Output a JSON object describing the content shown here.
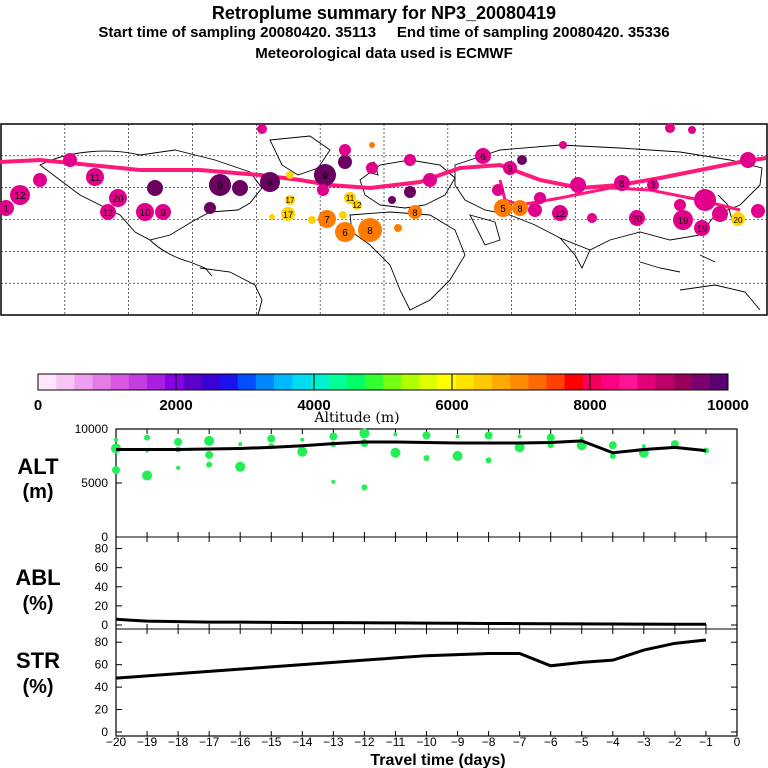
{
  "header": {
    "title": "Retroplume summary for NP3_20080419",
    "subtitle_start_label": "Start time of sampling 20080420. 35113",
    "subtitle_end_label": "End time of sampling 20080420. 35336",
    "subtitle_met": "Meteorological data used is ECMWF"
  },
  "colorbar": {
    "label": "Altitude (m)",
    "tick_labels": [
      "0",
      "2000",
      "4000",
      "6000",
      "8000",
      "10000"
    ],
    "range": [
      0,
      10000
    ],
    "colors": [
      "#ffe6ff",
      "#f7c6f7",
      "#ef9fef",
      "#e57be5",
      "#d957e3",
      "#c43de0",
      "#a81fe0",
      "#8a00e6",
      "#5a00c8",
      "#3c00d8",
      "#1c10f0",
      "#0050ff",
      "#0088ff",
      "#00b8ff",
      "#00dcf0",
      "#00f0d0",
      "#00ff99",
      "#00ff66",
      "#33ff33",
      "#77ff11",
      "#b0ff00",
      "#e0ff00",
      "#ffff00",
      "#ffe400",
      "#ffc800",
      "#ffaa00",
      "#ff8c00",
      "#ff6a00",
      "#ff4000",
      "#ff0000",
      "#f0005a",
      "#ff0080",
      "#ff1493",
      "#e0007a",
      "#c0006a",
      "#9a005a",
      "#7a0070",
      "#5a0070"
    ]
  },
  "map": {
    "name": "world map retroplume clusters",
    "plume_colors": {
      "track": "#ff1a7a",
      "magenta": "#e0008c",
      "purple": "#6a0060",
      "orange": "#ff7a00",
      "yellow": "#ffd200"
    },
    "cluster_labels": [
      "1",
      "3",
      "5",
      "6",
      "7",
      "8",
      "9",
      "10",
      "11",
      "12",
      "13",
      "14",
      "15",
      "16",
      "17",
      "18",
      "19",
      "20"
    ]
  },
  "panels": {
    "alt_label": "ALT",
    "alt_unit": "(m)",
    "abl_label": "ABL",
    "abl_unit": "(%)",
    "str_label": "STR",
    "str_unit": "(%)",
    "xlabel": "Travel time (days)"
  },
  "chart_data": [
    {
      "type": "line",
      "name": "ALT",
      "ylabel": "ALT (m)",
      "ylim": [
        0,
        10000
      ],
      "yticks": [
        0,
        5000,
        10000
      ],
      "xlim": [
        -20,
        0
      ],
      "x": [
        -20,
        -19,
        -18,
        -17,
        -16,
        -15,
        -14,
        -13,
        -12,
        -11,
        -10,
        -9,
        -8,
        -7,
        -6,
        -5,
        -4,
        -3,
        -2,
        -1
      ],
      "values": [
        8100,
        8100,
        8100,
        8150,
        8200,
        8300,
        8450,
        8650,
        8800,
        8800,
        8750,
        8700,
        8700,
        8700,
        8750,
        8900,
        7800,
        8100,
        8300,
        8000
      ],
      "scatter_color": "#22ee55",
      "scatter_points": [
        {
          "x": -20,
          "y": 9000
        },
        {
          "x": -20,
          "y": 8200
        },
        {
          "x": -20,
          "y": 6200
        },
        {
          "x": -19,
          "y": 9200
        },
        {
          "x": -19,
          "y": 8000
        },
        {
          "x": -19,
          "y": 5700
        },
        {
          "x": -18,
          "y": 8800
        },
        {
          "x": -18,
          "y": 8100
        },
        {
          "x": -18,
          "y": 6400
        },
        {
          "x": -17,
          "y": 8900
        },
        {
          "x": -17,
          "y": 7600
        },
        {
          "x": -17,
          "y": 6700
        },
        {
          "x": -16,
          "y": 8600
        },
        {
          "x": -16,
          "y": 6500
        },
        {
          "x": -15,
          "y": 9100
        },
        {
          "x": -15,
          "y": 8400
        },
        {
          "x": -14,
          "y": 9000
        },
        {
          "x": -14,
          "y": 7900
        },
        {
          "x": -13,
          "y": 9300
        },
        {
          "x": -13,
          "y": 8600
        },
        {
          "x": -13,
          "y": 5100
        },
        {
          "x": -12,
          "y": 9600
        },
        {
          "x": -12,
          "y": 8700
        },
        {
          "x": -12,
          "y": 4600
        },
        {
          "x": -11,
          "y": 9500
        },
        {
          "x": -11,
          "y": 7800
        },
        {
          "x": -10,
          "y": 9400
        },
        {
          "x": -10,
          "y": 7300
        },
        {
          "x": -9,
          "y": 9300
        },
        {
          "x": -9,
          "y": 7500
        },
        {
          "x": -8,
          "y": 9400
        },
        {
          "x": -8,
          "y": 7100
        },
        {
          "x": -7,
          "y": 9300
        },
        {
          "x": -7,
          "y": 8300
        },
        {
          "x": -6,
          "y": 9200
        },
        {
          "x": -6,
          "y": 8500
        },
        {
          "x": -5,
          "y": 9100
        },
        {
          "x": -5,
          "y": 8500
        },
        {
          "x": -4,
          "y": 8500
        },
        {
          "x": -4,
          "y": 7500
        },
        {
          "x": -3,
          "y": 8400
        },
        {
          "x": -3,
          "y": 7800
        },
        {
          "x": -2,
          "y": 8600
        },
        {
          "x": -1,
          "y": 8000
        }
      ]
    },
    {
      "type": "line",
      "name": "ABL",
      "ylabel": "ABL (%)",
      "ylim": [
        0,
        90
      ],
      "yticks": [
        0,
        20,
        40,
        60,
        80
      ],
      "xlim": [
        -20,
        0
      ],
      "x": [
        -20,
        -19,
        -18,
        -17,
        -16,
        -15,
        -14,
        -13,
        -12,
        -11,
        -10,
        -9,
        -8,
        -7,
        -6,
        -5,
        -4,
        -3,
        -2,
        -1
      ],
      "values": [
        6,
        4,
        3.5,
        3,
        3,
        2.8,
        2.5,
        2.5,
        2.3,
        2.2,
        2,
        1.8,
        1.6,
        1.5,
        1.3,
        1.2,
        1,
        0.9,
        0.8,
        0.8
      ]
    },
    {
      "type": "line",
      "name": "STR",
      "ylabel": "STR (%)",
      "ylim": [
        0,
        90
      ],
      "yticks": [
        0,
        20,
        40,
        60,
        80
      ],
      "xlim": [
        -20,
        0
      ],
      "xticks": [
        -20,
        -19,
        -18,
        -17,
        -16,
        -15,
        -14,
        -13,
        -12,
        -11,
        -10,
        -9,
        -8,
        -7,
        -6,
        -5,
        -4,
        -3,
        -2,
        -1,
        0
      ],
      "xlabel": "Travel time (days)",
      "x": [
        -20,
        -19,
        -18,
        -17,
        -16,
        -15,
        -14,
        -13,
        -12,
        -11,
        -10,
        -9,
        -8,
        -7,
        -6,
        -5,
        -4,
        -3,
        -2,
        -1
      ],
      "values": [
        48,
        50,
        52,
        54,
        56,
        58,
        60,
        62,
        64,
        66,
        68,
        69,
        70,
        70,
        59,
        62,
        64,
        73,
        79,
        82
      ]
    }
  ]
}
